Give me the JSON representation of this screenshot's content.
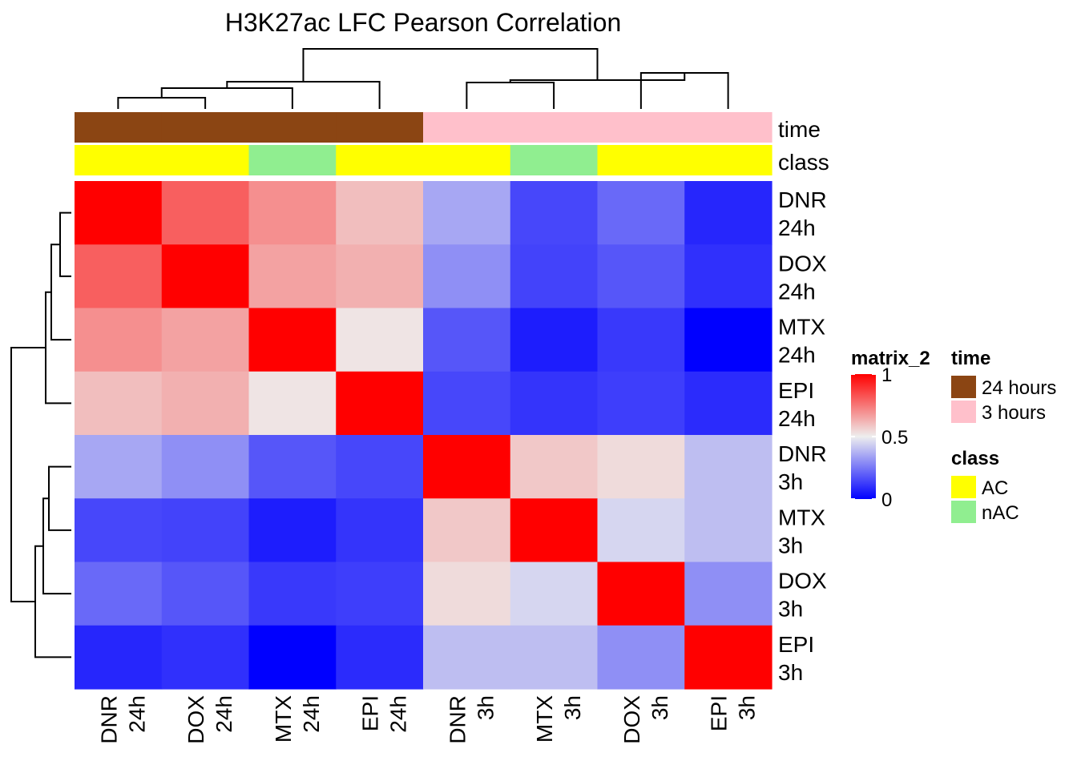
{
  "chart_data": {
    "type": "heatmap",
    "title": "H3K27ac LFC Pearson Correlation",
    "row_labels": [
      [
        "DNR",
        "24h"
      ],
      [
        "DOX",
        "24h"
      ],
      [
        "MTX",
        "24h"
      ],
      [
        "EPI",
        "24h"
      ],
      [
        "DNR",
        "3h"
      ],
      [
        "MTX",
        "3h"
      ],
      [
        "DOX",
        "3h"
      ],
      [
        "EPI",
        "3h"
      ]
    ],
    "col_labels": [
      [
        "DNR",
        "24h"
      ],
      [
        "DOX",
        "24h"
      ],
      [
        "MTX",
        "24h"
      ],
      [
        "EPI",
        "24h"
      ],
      [
        "DNR",
        "3h"
      ],
      [
        "MTX",
        "3h"
      ],
      [
        "DOX",
        "3h"
      ],
      [
        "EPI",
        "3h"
      ]
    ],
    "values": [
      [
        1.0,
        0.8,
        0.7,
        0.6,
        0.35,
        0.15,
        0.22,
        0.08
      ],
      [
        0.8,
        1.0,
        0.66,
        0.63,
        0.3,
        0.14,
        0.18,
        0.1
      ],
      [
        0.7,
        0.66,
        1.0,
        0.52,
        0.18,
        0.06,
        0.12,
        0.0
      ],
      [
        0.6,
        0.63,
        0.52,
        1.0,
        0.15,
        0.11,
        0.13,
        0.09
      ],
      [
        0.35,
        0.3,
        0.18,
        0.15,
        1.0,
        0.58,
        0.54,
        0.4
      ],
      [
        0.15,
        0.14,
        0.06,
        0.11,
        0.58,
        1.0,
        0.45,
        0.4
      ],
      [
        0.22,
        0.18,
        0.12,
        0.13,
        0.54,
        0.45,
        1.0,
        0.3
      ],
      [
        0.08,
        0.1,
        0.0,
        0.09,
        0.4,
        0.4,
        0.3,
        1.0
      ]
    ],
    "annotations": {
      "time": [
        "24 hours",
        "24 hours",
        "24 hours",
        "24 hours",
        "3 hours",
        "3 hours",
        "3 hours",
        "3 hours"
      ],
      "class": [
        "AC",
        "AC",
        "nAC",
        "AC",
        "AC",
        "nAC",
        "AC",
        "AC"
      ]
    },
    "annotation_labels": [
      "time",
      "class"
    ],
    "color_scale": {
      "name": "matrix_2",
      "stops": [
        {
          "value": 0,
          "color": "#0000FF"
        },
        {
          "value": 0.5,
          "color": "#EEEEEE"
        },
        {
          "value": 1,
          "color": "#FF0000"
        }
      ],
      "ticks": [
        "0",
        "0.5",
        "1"
      ]
    },
    "legend": {
      "time": {
        "title": "time",
        "items": [
          {
            "label": "24 hours",
            "color": "#8B4513"
          },
          {
            "label": "3 hours",
            "color": "#FFC0CB"
          }
        ]
      },
      "class": {
        "title": "class",
        "items": [
          {
            "label": "AC",
            "color": "#FFFF00"
          },
          {
            "label": "nAC",
            "color": "#90EE90"
          }
        ]
      }
    },
    "grid": false,
    "legend_position": "right"
  }
}
